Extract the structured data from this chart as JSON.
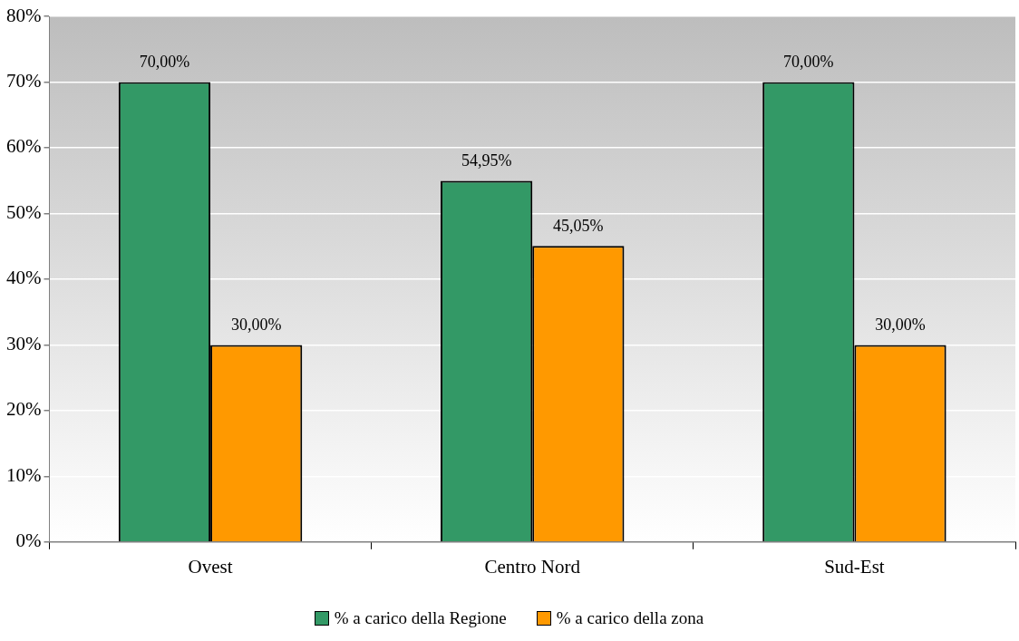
{
  "chart_data": {
    "type": "bar",
    "categories": [
      "Ovest",
      "Centro Nord",
      "Sud-Est"
    ],
    "series": [
      {
        "name": "% a carico della Regione",
        "color": "#339966",
        "values": [
          70,
          54.95,
          70
        ],
        "value_labels": [
          "70,00%",
          "54,95%",
          "70,00%"
        ]
      },
      {
        "name": "% a carico della zona",
        "color": "#ff9900",
        "values": [
          30,
          45.05,
          30
        ],
        "value_labels": [
          "30,00%",
          "45,05%",
          "30,00%"
        ]
      }
    ],
    "ylim": [
      0,
      80
    ],
    "yticks": [
      {
        "value": 0,
        "label": "0%"
      },
      {
        "value": 10,
        "label": "10%"
      },
      {
        "value": 20,
        "label": "20%"
      },
      {
        "value": 30,
        "label": "30%"
      },
      {
        "value": 40,
        "label": "40%"
      },
      {
        "value": 50,
        "label": "50%"
      },
      {
        "value": 60,
        "label": "60%"
      },
      {
        "value": 70,
        "label": "70%"
      },
      {
        "value": 80,
        "label": "80%"
      }
    ],
    "grid": "y",
    "legend": "bottom"
  }
}
